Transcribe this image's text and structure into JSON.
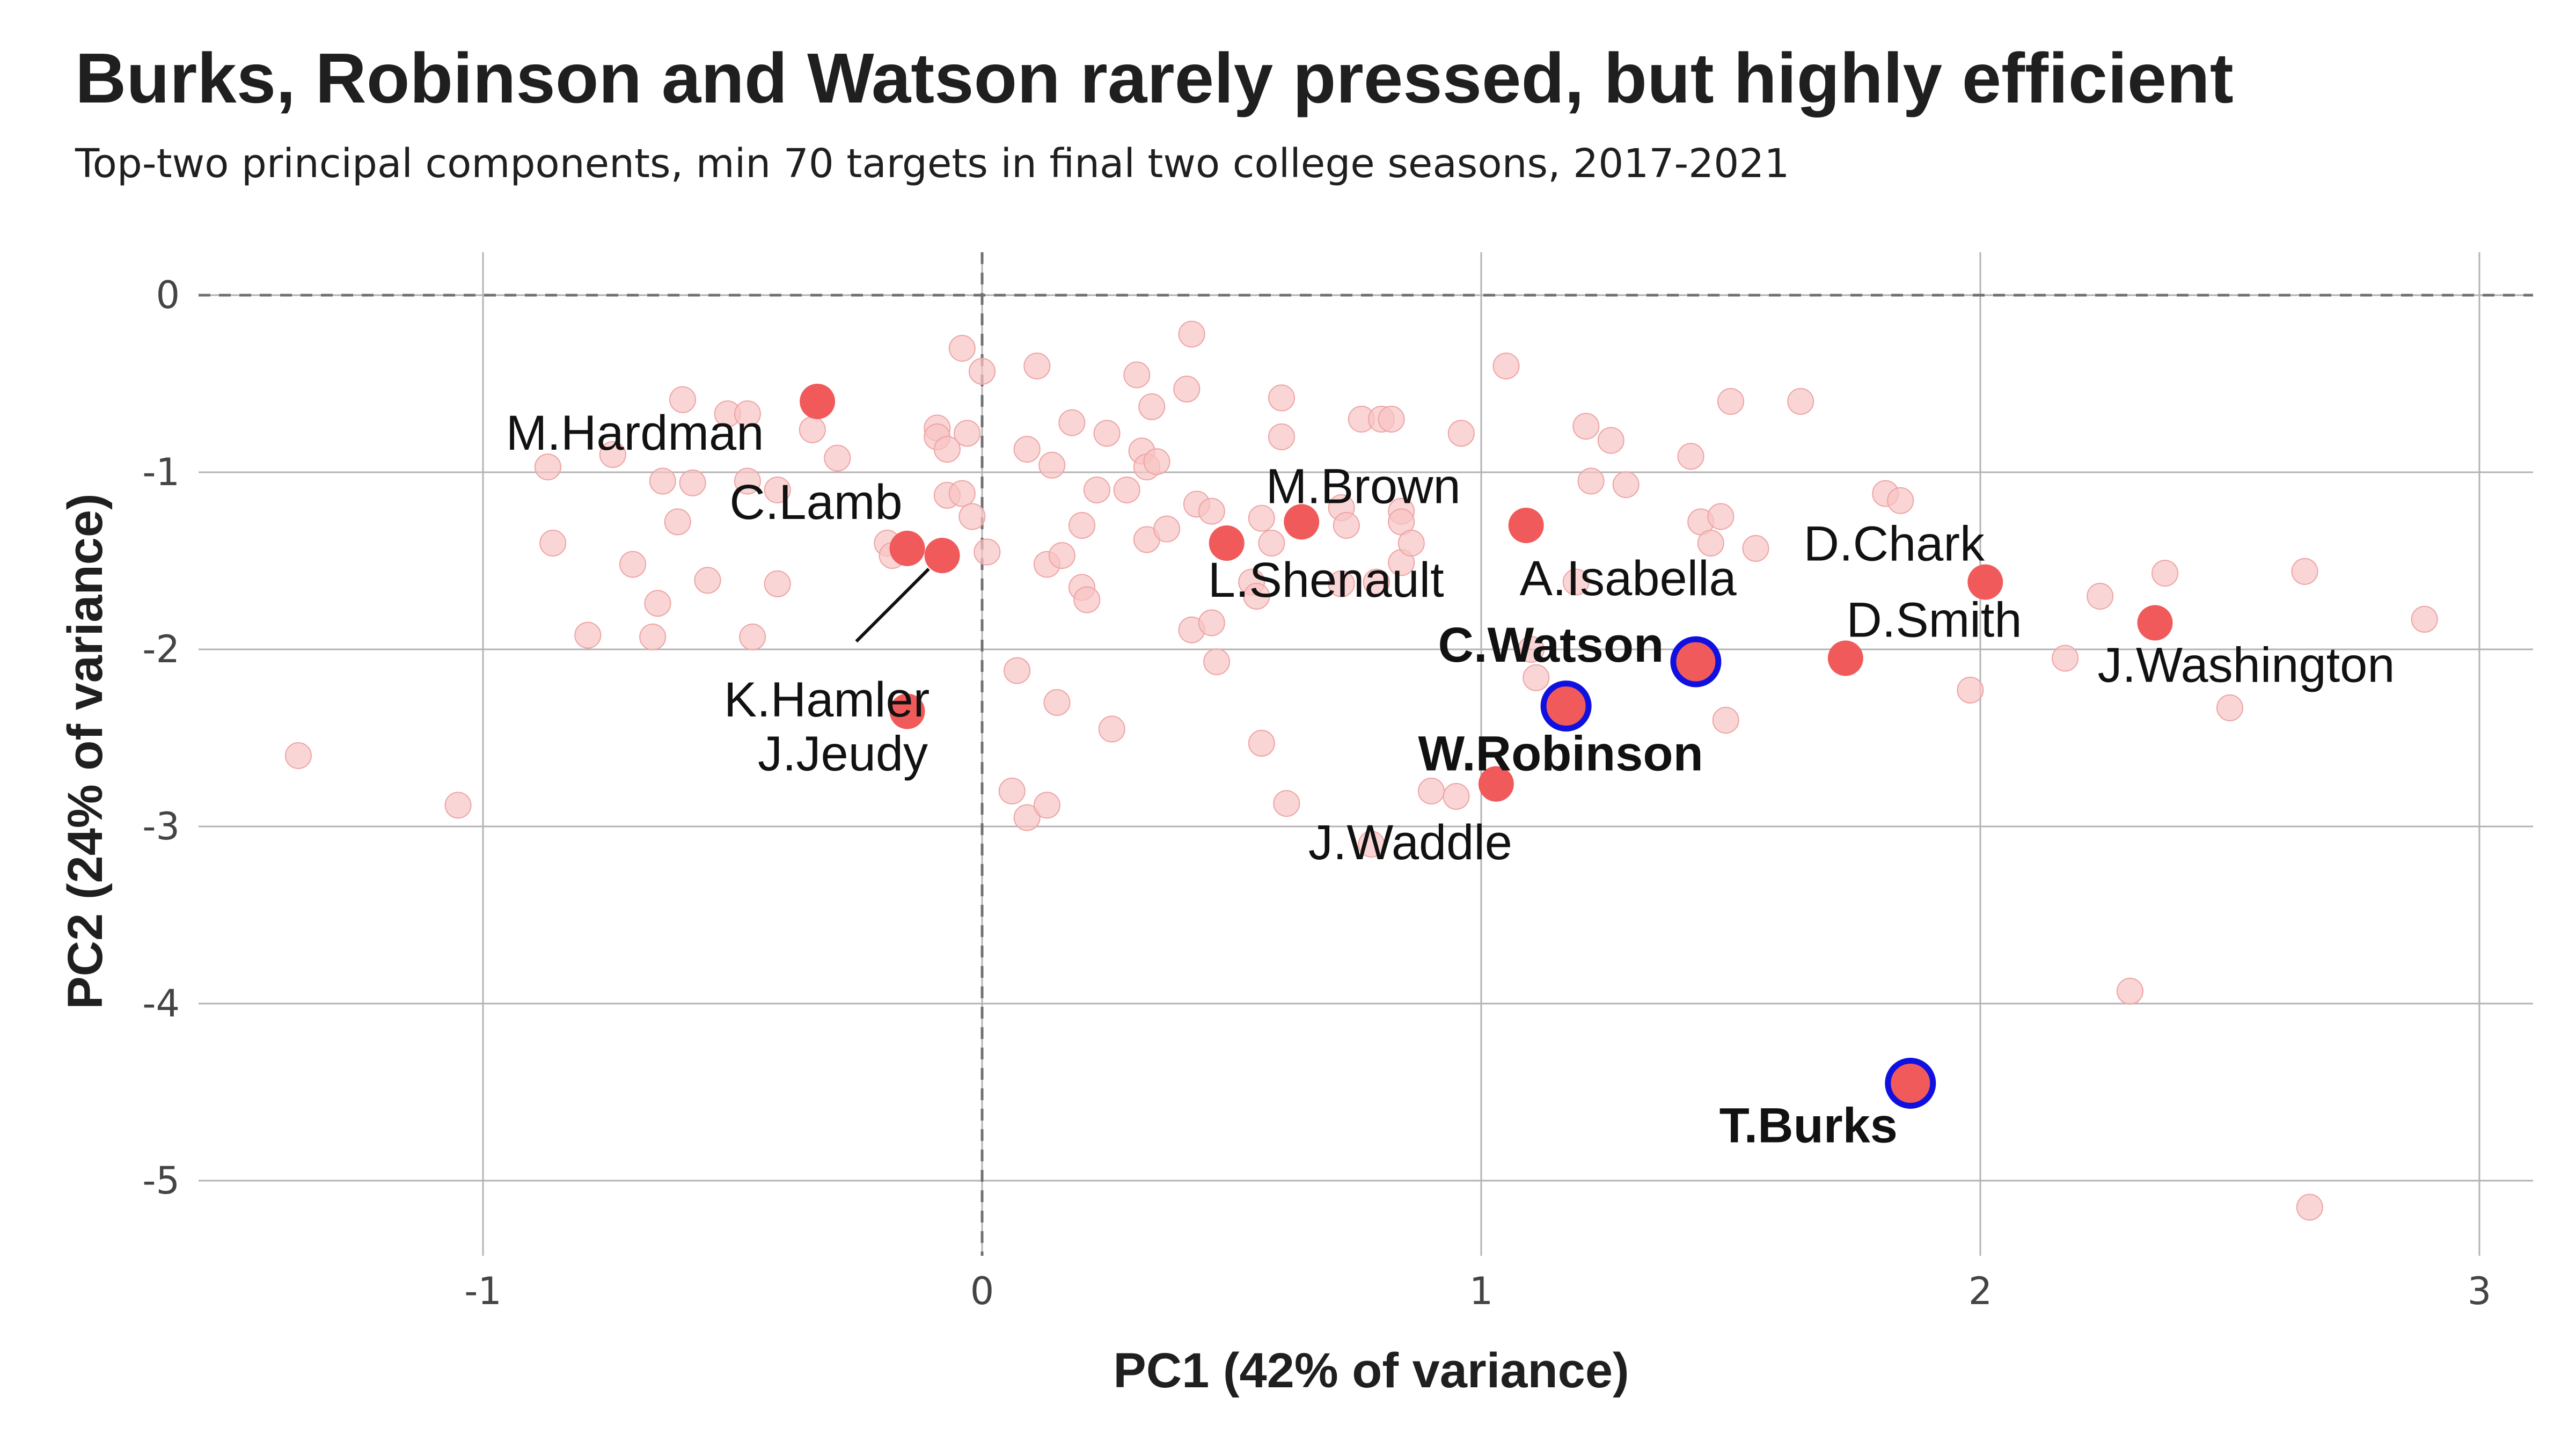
{
  "title": "Burks, Robinson and Watson rarely pressed, but highly efficient",
  "subtitle": "Top-two principal components, min 70 targets in final two college seasons, 2017-2021",
  "colors": {
    "background_point": "#f8c3c3",
    "labeled_point": "#f05a5a",
    "highlight_ring": "#1010e0",
    "grid": "#b3b3b3",
    "reference_line": "#707070"
  },
  "chart_data": {
    "type": "scatter",
    "xlabel": "PC1 (42% of variance)",
    "ylabel": "PC2 (24% of variance)",
    "xlim": [
      -1.5,
      3.1
    ],
    "ylim": [
      -5.5,
      0.25
    ],
    "xticks": [
      -1,
      0,
      1,
      2,
      3
    ],
    "yticks": [
      0,
      -1,
      -2,
      -3,
      -4,
      -5
    ],
    "grid": true,
    "reference_lines": {
      "x": 0,
      "y": 0,
      "style": "dashed"
    },
    "labeled_points": [
      {
        "name": "M.Hardman",
        "x": -0.33,
        "y": -0.6,
        "bold": false,
        "highlight": false
      },
      {
        "name": "C.Lamb",
        "x": -0.15,
        "y": -1.43,
        "bold": false,
        "highlight": false
      },
      {
        "name": "K.Hamler",
        "x": -0.08,
        "y": -1.47,
        "bold": false,
        "highlight": false
      },
      {
        "name": "J.Jeudy",
        "x": -0.15,
        "y": -2.35,
        "bold": false,
        "highlight": false
      },
      {
        "name": "L.Shenault",
        "x": 0.49,
        "y": -1.4,
        "bold": false,
        "highlight": false
      },
      {
        "name": "M.Brown",
        "x": 0.64,
        "y": -1.28,
        "bold": false,
        "highlight": false
      },
      {
        "name": "A.Isabella",
        "x": 1.09,
        "y": -1.3,
        "bold": false,
        "highlight": false
      },
      {
        "name": "C.Watson",
        "x": 1.43,
        "y": -2.07,
        "bold": true,
        "highlight": true
      },
      {
        "name": "W.Robinson",
        "x": 1.17,
        "y": -2.32,
        "bold": true,
        "highlight": true
      },
      {
        "name": "J.Waddle",
        "x": 1.03,
        "y": -2.76,
        "bold": false,
        "highlight": false
      },
      {
        "name": "D.Chark",
        "x": 2.01,
        "y": -1.62,
        "bold": false,
        "highlight": false
      },
      {
        "name": "D.Smith",
        "x": 1.73,
        "y": -2.05,
        "bold": false,
        "highlight": false
      },
      {
        "name": "J.Washington",
        "x": 2.35,
        "y": -1.85,
        "bold": false,
        "highlight": false
      },
      {
        "name": "T.Burks",
        "x": 1.86,
        "y": -4.45,
        "bold": true,
        "highlight": true
      }
    ],
    "background_points": [
      [
        -1.37,
        -2.6
      ],
      [
        -1.05,
        -2.88
      ],
      [
        -0.87,
        -0.97
      ],
      [
        -0.86,
        -1.4
      ],
      [
        -0.79,
        -1.92
      ],
      [
        -0.74,
        -0.9
      ],
      [
        -0.7,
        -1.52
      ],
      [
        -0.66,
        -1.93
      ],
      [
        -0.65,
        -1.74
      ],
      [
        -0.64,
        -1.05
      ],
      [
        -0.61,
        -1.28
      ],
      [
        -0.6,
        -0.59
      ],
      [
        -0.58,
        -1.06
      ],
      [
        -0.55,
        -1.61
      ],
      [
        -0.51,
        -0.67
      ],
      [
        -0.47,
        -0.67
      ],
      [
        -0.47,
        -1.05
      ],
      [
        -0.46,
        -1.93
      ],
      [
        -0.41,
        -1.1
      ],
      [
        -0.41,
        -1.63
      ],
      [
        -0.34,
        -0.76
      ],
      [
        -0.29,
        -0.92
      ],
      [
        -0.19,
        -1.4
      ],
      [
        -0.18,
        -1.47
      ],
      [
        -0.09,
        -0.75
      ],
      [
        -0.09,
        -0.8
      ],
      [
        -0.07,
        -0.87
      ],
      [
        -0.07,
        -1.13
      ],
      [
        -0.04,
        -1.12
      ],
      [
        -0.03,
        -0.78
      ],
      [
        -0.02,
        -1.25
      ],
      [
        -0.04,
        -0.3
      ],
      [
        0.0,
        -0.43
      ],
      [
        0.01,
        -1.45
      ],
      [
        0.06,
        -2.8
      ],
      [
        0.07,
        -2.12
      ],
      [
        0.09,
        -0.87
      ],
      [
        0.09,
        -2.95
      ],
      [
        0.11,
        -0.4
      ],
      [
        0.13,
        -2.88
      ],
      [
        0.13,
        -1.52
      ],
      [
        0.16,
        -1.47
      ],
      [
        0.14,
        -0.96
      ],
      [
        0.15,
        -2.3
      ],
      [
        0.18,
        -0.72
      ],
      [
        0.2,
        -1.3
      ],
      [
        0.2,
        -1.65
      ],
      [
        0.21,
        -1.72
      ],
      [
        0.23,
        -1.1
      ],
      [
        0.25,
        -0.78
      ],
      [
        0.26,
        -2.45
      ],
      [
        0.29,
        -1.1
      ],
      [
        0.31,
        -0.45
      ],
      [
        0.32,
        -0.88
      ],
      [
        0.33,
        -0.97
      ],
      [
        0.33,
        -1.38
      ],
      [
        0.34,
        -0.63
      ],
      [
        0.35,
        -0.94
      ],
      [
        0.37,
        -1.32
      ],
      [
        0.41,
        -0.53
      ],
      [
        0.42,
        -0.22
      ],
      [
        0.42,
        -1.89
      ],
      [
        0.43,
        -1.18
      ],
      [
        0.46,
        -1.22
      ],
      [
        0.46,
        -1.85
      ],
      [
        0.47,
        -2.07
      ],
      [
        0.54,
        -1.62
      ],
      [
        0.55,
        -1.7
      ],
      [
        0.56,
        -1.26
      ],
      [
        0.56,
        -2.53
      ],
      [
        0.58,
        -1.4
      ],
      [
        0.6,
        -0.58
      ],
      [
        0.6,
        -0.8
      ],
      [
        0.61,
        -2.87
      ],
      [
        0.72,
        -1.2
      ],
      [
        0.72,
        -1.63
      ],
      [
        0.73,
        -1.3
      ],
      [
        0.76,
        -0.7
      ],
      [
        0.78,
        -3.1
      ],
      [
        0.79,
        -1.62
      ],
      [
        0.8,
        -0.7
      ],
      [
        0.82,
        -0.7
      ],
      [
        0.84,
        -1.51
      ],
      [
        0.84,
        -1.22
      ],
      [
        0.84,
        -1.28
      ],
      [
        0.86,
        -1.4
      ],
      [
        0.9,
        -2.8
      ],
      [
        0.95,
        -2.83
      ],
      [
        0.96,
        -0.78
      ],
      [
        1.05,
        -0.4
      ],
      [
        1.1,
        -2.0
      ],
      [
        1.11,
        -2.16
      ],
      [
        1.19,
        -1.62
      ],
      [
        1.21,
        -0.74
      ],
      [
        1.22,
        -1.05
      ],
      [
        1.26,
        -0.82
      ],
      [
        1.29,
        -1.07
      ],
      [
        1.42,
        -0.91
      ],
      [
        1.44,
        -1.28
      ],
      [
        1.46,
        -1.4
      ],
      [
        1.48,
        -1.25
      ],
      [
        1.5,
        -0.6
      ],
      [
        1.49,
        -2.4
      ],
      [
        1.55,
        -1.43
      ],
      [
        1.64,
        -0.6
      ],
      [
        1.81,
        -1.12
      ],
      [
        1.84,
        -1.16
      ],
      [
        1.98,
        -2.23
      ],
      [
        2.17,
        -2.05
      ],
      [
        2.24,
        -1.7
      ],
      [
        2.3,
        -3.93
      ],
      [
        2.37,
        -1.57
      ],
      [
        2.5,
        -2.33
      ],
      [
        2.65,
        -1.56
      ],
      [
        2.66,
        -5.15
      ],
      [
        2.89,
        -1.83
      ]
    ]
  }
}
